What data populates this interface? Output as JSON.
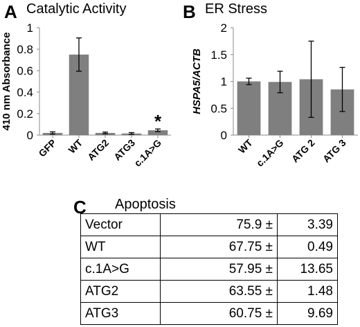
{
  "chart_data": [
    {
      "type": "bar",
      "panel": "A",
      "title": "Catalytic Activity",
      "ylabel": "410 nm Absorbance",
      "categories": [
        "GFP",
        "WT",
        "ATG2",
        "ATG3",
        "c.1A>G"
      ],
      "values": [
        0.02,
        0.75,
        0.02,
        0.015,
        0.045
      ],
      "errors": [
        0.01,
        0.155,
        0.008,
        0.008,
        0.012
      ],
      "yticks": [
        "0",
        "0.2",
        "0.4",
        "0.6",
        "0.8",
        "1"
      ],
      "ylim": [
        0,
        1
      ],
      "annotations": [
        {
          "category": "c.1A>G",
          "text": "*"
        }
      ],
      "color": "#7f7f7f"
    },
    {
      "type": "bar",
      "panel": "B",
      "title": "ER Stress",
      "ylabel": "HSPA5/ACTB",
      "categories": [
        "WT",
        "c.1A>G",
        "ATG 2",
        "ATG 3"
      ],
      "values": [
        1.0,
        0.99,
        1.04,
        0.85
      ],
      "errors": [
        0.06,
        0.2,
        0.71,
        0.41
      ],
      "yticks": [
        "0",
        "0.5",
        "1",
        "1.5",
        "2"
      ],
      "ylim": [
        0,
        2
      ],
      "color": "#7f7f7f"
    },
    {
      "type": "table",
      "panel": "C",
      "title": "Apoptosis",
      "rows": [
        {
          "label": "Vector",
          "mean": "75.9 ±",
          "sd": "3.39"
        },
        {
          "label": "WT",
          "mean": "67.75 ±",
          "sd": "0.49"
        },
        {
          "label": "c.1A>G",
          "mean": "57.95 ±",
          "sd": "13.65"
        },
        {
          "label": "ATG2",
          "mean": "63.55 ±",
          "sd": "1.48"
        },
        {
          "label": "ATG3",
          "mean": "60.75 ±",
          "sd": "9.69"
        }
      ]
    }
  ]
}
